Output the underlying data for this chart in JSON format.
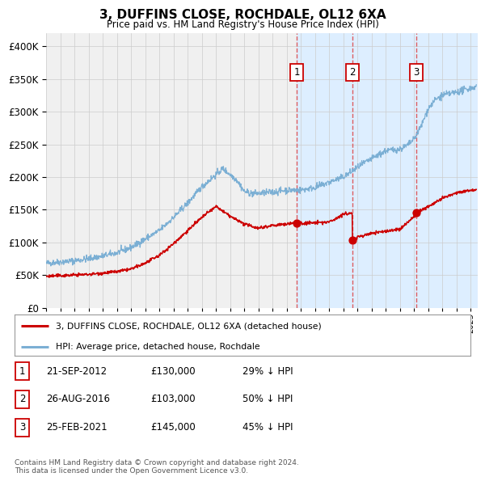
{
  "title": "3, DUFFINS CLOSE, ROCHDALE, OL12 6XA",
  "subtitle": "Price paid vs. HM Land Registry's House Price Index (HPI)",
  "legend_line1": "3, DUFFINS CLOSE, ROCHDALE, OL12 6XA (detached house)",
  "legend_line2": "HPI: Average price, detached house, Rochdale",
  "footnote": "Contains HM Land Registry data © Crown copyright and database right 2024.\nThis data is licensed under the Open Government Licence v3.0.",
  "transactions": [
    {
      "label": "1",
      "date": "21-SEP-2012",
      "price": 130000,
      "hpi_pct": "29% ↓ HPI",
      "x_year": 2012.72
    },
    {
      "label": "2",
      "date": "26-AUG-2016",
      "price": 103000,
      "hpi_pct": "50% ↓ HPI",
      "x_year": 2016.65
    },
    {
      "label": "3",
      "date": "25-FEB-2021",
      "price": 145000,
      "hpi_pct": "45% ↓ HPI",
      "x_year": 2021.15
    }
  ],
  "hpi_line_color": "#7bafd4",
  "price_line_color": "#cc0000",
  "dot_color": "#cc0000",
  "vline_color": "#dd4444",
  "shade_color": "#ddeeff",
  "background_color": "#f0f0f0",
  "grid_color": "#cccccc",
  "ylim": [
    0,
    420000
  ],
  "xlim_start": 1995.0,
  "xlim_end": 2025.5
}
